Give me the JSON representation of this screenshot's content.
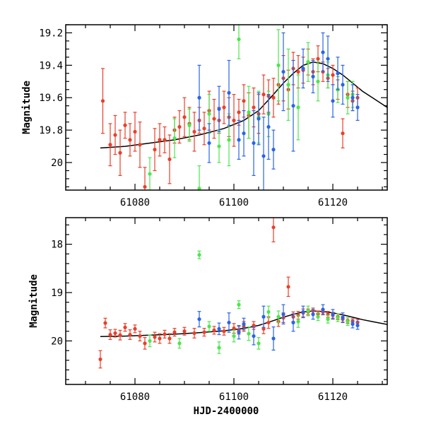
{
  "chart_data": [
    {
      "type": "scatter",
      "panel": "top",
      "title": "",
      "xlabel": "",
      "ylabel": "Magnitude",
      "xlim": [
        61066,
        61131
      ],
      "ylim": [
        20.17,
        19.15
      ],
      "y_inverted": true,
      "xticks": [
        61080,
        61100,
        61120
      ],
      "yticks": [
        19.2,
        19.4,
        19.6,
        19.8,
        20
      ],
      "ytick_labels": [
        "19.2",
        "19.4",
        "19.6",
        "19.8",
        "20"
      ],
      "curve": {
        "name": "model",
        "color": "#000000",
        "x": [
          61073,
          61078,
          61083,
          61088,
          61093,
          61098,
          61102,
          61105,
          61108,
          61110,
          61112,
          61114,
          61116,
          61118,
          61120,
          61122,
          61124,
          61126,
          61128,
          61131
        ],
        "y": [
          19.91,
          19.9,
          19.88,
          19.86,
          19.83,
          19.79,
          19.74,
          19.68,
          19.58,
          19.51,
          19.45,
          19.4,
          19.38,
          19.39,
          19.42,
          19.46,
          19.51,
          19.56,
          19.6,
          19.66
        ]
      },
      "series": [
        {
          "name": "red",
          "color": "#e8402a",
          "x": [
            61073.5,
            61075,
            61076,
            61077,
            61078,
            61079,
            61080,
            61081,
            61082,
            61084,
            61085,
            61086,
            61087,
            61088,
            61089,
            61090,
            61091,
            61092,
            61093,
            61094,
            61095,
            61096,
            61097,
            61098,
            61099,
            61100,
            61101,
            61102,
            61103,
            61104,
            61105,
            61106,
            61107,
            61108,
            61109,
            61110,
            61111,
            61112,
            61113,
            61114,
            61115,
            61116,
            61117,
            61118,
            61119,
            61120,
            61121,
            61122,
            61123,
            61124,
            61125
          ],
          "y": [
            19.62,
            19.89,
            19.83,
            19.94,
            19.77,
            19.86,
            19.81,
            19.89,
            20.15,
            19.92,
            19.86,
            19.86,
            19.98,
            19.8,
            19.78,
            19.72,
            19.76,
            19.81,
            19.74,
            19.79,
            19.68,
            19.73,
            19.74,
            19.66,
            19.72,
            19.74,
            19.69,
            19.62,
            19.71,
            19.66,
            19.7,
            19.58,
            19.59,
            19.6,
            19.52,
            19.48,
            19.55,
            19.42,
            19.44,
            19.43,
            19.38,
            19.44,
            19.36,
            19.44,
            19.48,
            19.46,
            19.55,
            19.82,
            19.58,
            19.62,
            19.6
          ],
          "err": [
            0.2,
            0.13,
            0.12,
            0.14,
            0.08,
            0.1,
            0.12,
            0.14,
            0.12,
            0.13,
            0.1,
            0.08,
            0.15,
            0.08,
            0.1,
            0.12,
            0.1,
            0.12,
            0.08,
            0.1,
            0.12,
            0.12,
            0.08,
            0.1,
            0.12,
            0.16,
            0.08,
            0.1,
            0.14,
            0.12,
            0.12,
            0.12,
            0.1,
            0.12,
            0.12,
            0.14,
            0.12,
            0.1,
            0.1,
            0.08,
            0.08,
            0.08,
            0.08,
            0.06,
            0.06,
            0.06,
            0.06,
            0.09,
            0.08,
            0.06,
            0.06
          ]
        },
        {
          "name": "green",
          "color": "#4ce64c",
          "x": [
            61083,
            61088,
            61091,
            61093,
            61095,
            61097,
            61099,
            61101,
            61103,
            61105,
            61107,
            61109,
            61111,
            61113,
            61115,
            61117,
            61119,
            61121,
            61123,
            61124
          ],
          "y": [
            20.07,
            19.85,
            19.77,
            20.16,
            19.7,
            19.9,
            19.86,
            19.24,
            19.69,
            19.72,
            19.7,
            19.4,
            19.52,
            19.66,
            19.38,
            19.5,
            19.46,
            19.55,
            19.6,
            19.58
          ],
          "err": [
            0.1,
            0.12,
            0.1,
            0.14,
            0.12,
            0.1,
            0.16,
            0.12,
            0.16,
            0.16,
            0.14,
            0.22,
            0.22,
            0.2,
            0.12,
            0.12,
            0.08,
            0.08,
            0.1,
            0.08
          ]
        },
        {
          "name": "blue",
          "color": "#2a64e6",
          "x": [
            61093,
            61095,
            61097,
            61099,
            61101,
            61102,
            61104,
            61105,
            61106,
            61107,
            61108,
            61110,
            61112,
            61114,
            61116,
            61118,
            61119,
            61120,
            61121,
            61122,
            61124,
            61125
          ],
          "y": [
            19.6,
            19.88,
            19.67,
            19.57,
            19.86,
            19.82,
            19.88,
            19.73,
            19.96,
            19.78,
            19.92,
            19.44,
            19.65,
            19.42,
            19.47,
            19.32,
            19.36,
            19.62,
            19.45,
            19.52,
            19.6,
            19.66
          ],
          "err": [
            0.2,
            0.12,
            0.14,
            0.2,
            0.12,
            0.14,
            0.2,
            0.16,
            0.24,
            0.2,
            0.12,
            0.24,
            0.28,
            0.12,
            0.1,
            0.12,
            0.14,
            0.1,
            0.1,
            0.12,
            0.08,
            0.08
          ]
        }
      ]
    },
    {
      "type": "scatter",
      "panel": "bottom",
      "title": "",
      "xlabel": "HJD-2400000",
      "ylabel": "Magnitude",
      "xlim": [
        61066,
        61131
      ],
      "ylim": [
        20.9,
        17.45
      ],
      "y_inverted": true,
      "xticks": [
        61080,
        61100,
        61120
      ],
      "yticks": [
        18,
        19,
        20
      ],
      "ytick_labels": [
        "18",
        "19",
        "20"
      ],
      "curve": {
        "name": "model",
        "color": "#000000",
        "x": [
          61073,
          61078,
          61083,
          61088,
          61093,
          61098,
          61102,
          61105,
          61108,
          61110,
          61112,
          61114,
          61116,
          61118,
          61120,
          61122,
          61124,
          61126,
          61128,
          61131
        ],
        "y": [
          19.91,
          19.9,
          19.88,
          19.86,
          19.83,
          19.79,
          19.74,
          19.68,
          19.58,
          19.51,
          19.45,
          19.4,
          19.38,
          19.39,
          19.42,
          19.46,
          19.51,
          19.56,
          19.6,
          19.66
        ]
      },
      "series": [
        {
          "name": "red",
          "color": "#e8402a",
          "x": [
            61073,
            61074,
            61075,
            61076,
            61077,
            61078,
            61079,
            61080,
            61081,
            61082,
            61084,
            61085,
            61086,
            61087,
            61088,
            61090,
            61092,
            61094,
            61096,
            61098,
            61100,
            61101,
            61102,
            61104,
            61106,
            61107,
            61108,
            61109,
            61110,
            61111,
            61112,
            61113,
            61114,
            61115,
            61116,
            61117,
            61118,
            61119,
            61120,
            61121,
            61122,
            61123,
            61124,
            61125
          ],
          "y": [
            20.38,
            19.63,
            19.87,
            19.84,
            19.88,
            19.72,
            19.87,
            19.75,
            19.9,
            20.05,
            19.92,
            19.95,
            19.86,
            19.95,
            19.82,
            19.8,
            19.84,
            19.82,
            19.78,
            19.8,
            19.74,
            19.78,
            19.7,
            19.68,
            19.75,
            19.62,
            17.65,
            19.6,
            19.52,
            18.88,
            19.5,
            19.47,
            19.42,
            19.4,
            19.38,
            19.44,
            19.4,
            19.45,
            19.47,
            19.5,
            19.55,
            19.58,
            19.6,
            19.62
          ],
          "err": [
            0.18,
            0.1,
            0.1,
            0.08,
            0.1,
            0.08,
            0.1,
            0.08,
            0.1,
            0.12,
            0.1,
            0.1,
            0.08,
            0.1,
            0.08,
            0.08,
            0.1,
            0.08,
            0.08,
            0.08,
            0.1,
            0.08,
            0.1,
            0.08,
            0.1,
            0.12,
            0.3,
            0.1,
            0.1,
            0.2,
            0.1,
            0.08,
            0.08,
            0.06,
            0.06,
            0.06,
            0.06,
            0.06,
            0.06,
            0.06,
            0.06,
            0.06,
            0.06,
            0.06
          ]
        },
        {
          "name": "green",
          "color": "#4ce64c",
          "x": [
            61083,
            61089,
            61093,
            61095,
            61097,
            61100,
            61101,
            61103,
            61105,
            61107,
            61109,
            61113,
            61115,
            61117,
            61119,
            61121,
            61123
          ],
          "y": [
            20.0,
            20.05,
            18.22,
            19.7,
            20.14,
            19.9,
            19.25,
            19.85,
            20.05,
            19.4,
            19.5,
            19.6,
            19.38,
            19.5,
            19.55,
            19.52,
            19.6
          ],
          "err": [
            0.12,
            0.1,
            0.08,
            0.1,
            0.12,
            0.12,
            0.08,
            0.14,
            0.12,
            0.12,
            0.12,
            0.12,
            0.1,
            0.08,
            0.08,
            0.08,
            0.08
          ]
        },
        {
          "name": "blue",
          "color": "#2a64e6",
          "x": [
            61093,
            61097,
            61099,
            61101,
            61102,
            61104,
            61106,
            61108,
            61110,
            61112,
            61114,
            61116,
            61118,
            61120,
            61122,
            61124,
            61125
          ],
          "y": [
            19.55,
            19.75,
            19.62,
            19.82,
            19.65,
            19.9,
            19.5,
            19.95,
            19.45,
            19.62,
            19.4,
            19.45,
            19.35,
            19.45,
            19.52,
            19.65,
            19.68
          ],
          "err": [
            0.16,
            0.12,
            0.2,
            0.14,
            0.12,
            0.18,
            0.22,
            0.24,
            0.2,
            0.18,
            0.12,
            0.1,
            0.1,
            0.1,
            0.1,
            0.08,
            0.08
          ]
        }
      ]
    }
  ]
}
